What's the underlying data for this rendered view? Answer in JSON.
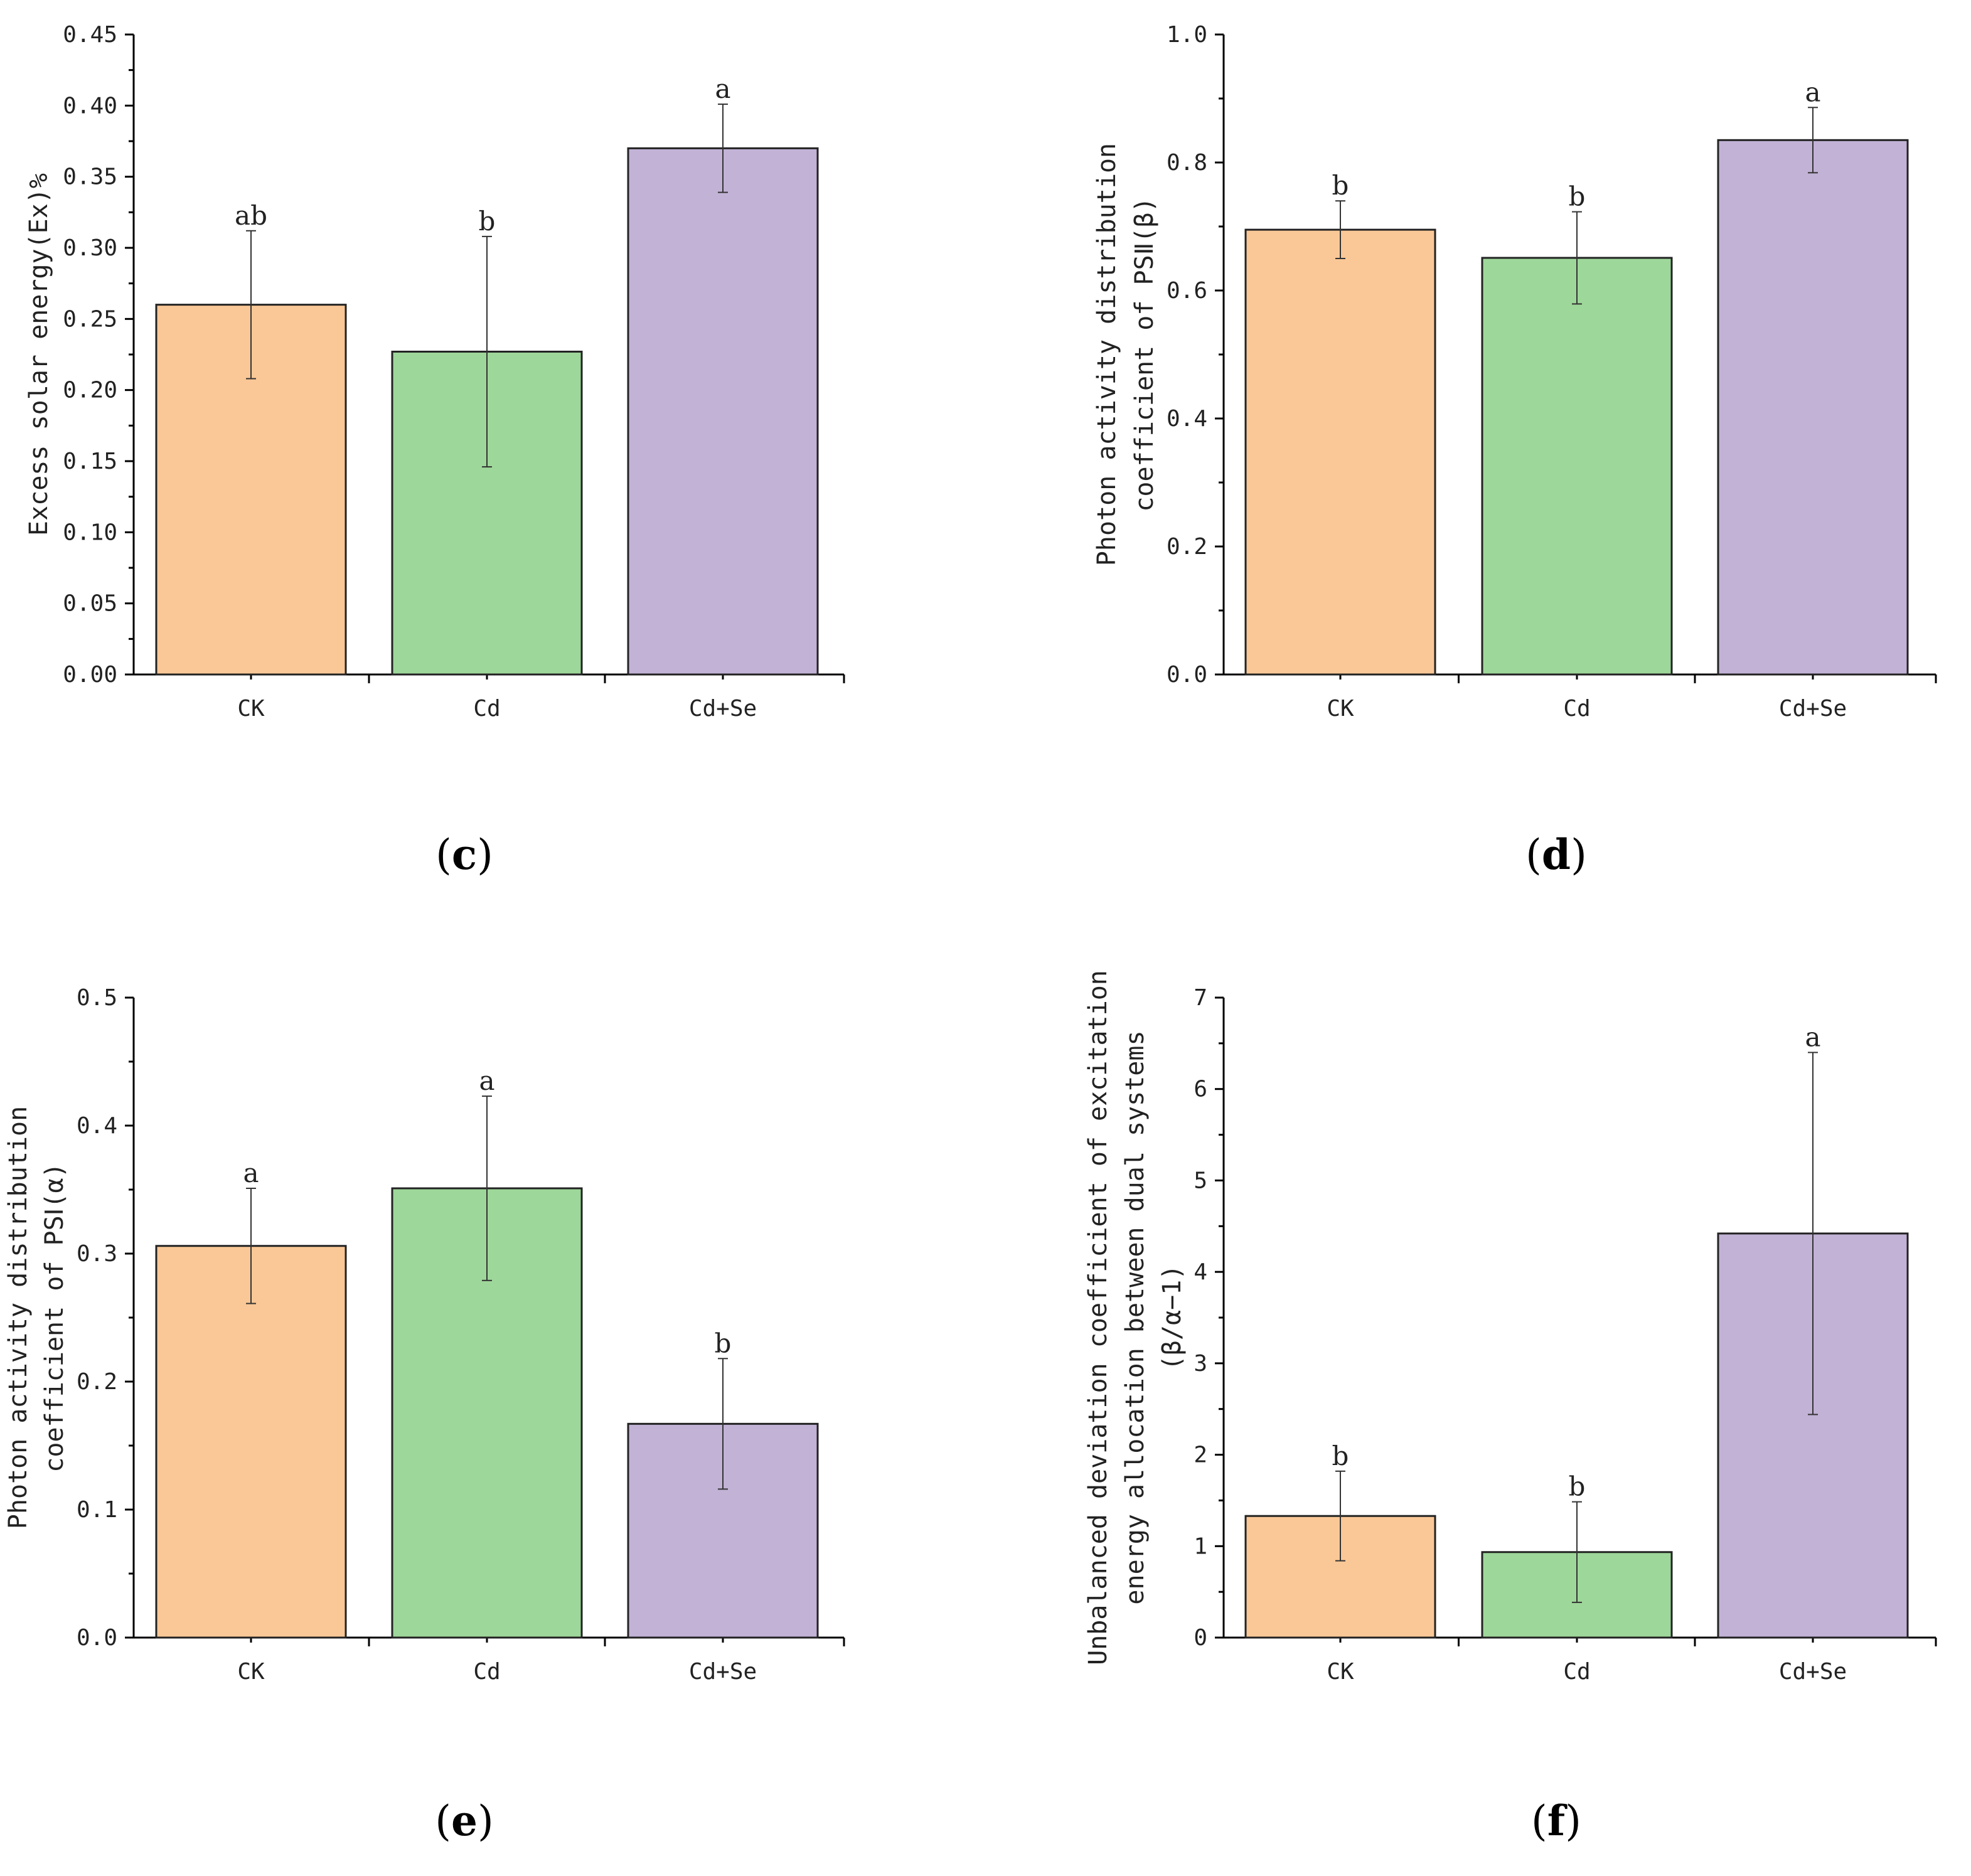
{
  "chart_data": [
    {
      "panel": "(c)",
      "panel_letter": "c",
      "type": "bar",
      "categories": [
        "CK",
        "Cd",
        "Cd+Se"
      ],
      "values": [
        0.26,
        0.227,
        0.37
      ],
      "errors": [
        0.052,
        0.081,
        0.031
      ],
      "significance": [
        "ab",
        "b",
        "a"
      ],
      "ylabel": "Excess solar energy(Ex)%",
      "ylim": [
        0,
        0.45
      ],
      "yticks": [
        "0.00",
        "0.05",
        "0.10",
        "0.15",
        "0.20",
        "0.25",
        "0.30",
        "0.35",
        "0.40",
        "0.45"
      ],
      "minor_ticks": true
    },
    {
      "panel": "(d)",
      "panel_letter": "d",
      "type": "bar",
      "categories": [
        "CK",
        "Cd",
        "Cd+Se"
      ],
      "values": [
        0.695,
        0.651,
        0.835
      ],
      "errors": [
        0.045,
        0.072,
        0.051
      ],
      "significance": [
        "b",
        "b",
        "a"
      ],
      "ylabel_lines": [
        "Photon activity distribution",
        "coefficient of PSⅡ(β)"
      ],
      "ylim": [
        0,
        1.0
      ],
      "yticks": [
        "0.0",
        "0.2",
        "0.4",
        "0.6",
        "0.8",
        "1.0"
      ],
      "minor_ticks": true
    },
    {
      "panel": "(e)",
      "panel_letter": "e",
      "type": "bar",
      "categories": [
        "CK",
        "Cd",
        "Cd+Se"
      ],
      "values": [
        0.306,
        0.351,
        0.167
      ],
      "errors": [
        0.045,
        0.072,
        0.051
      ],
      "significance": [
        "a",
        "a",
        "b"
      ],
      "ylabel_lines": [
        "Photon activity distribution",
        "coefficient of PSⅠ(α)"
      ],
      "ylim": [
        0,
        0.5
      ],
      "yticks": [
        "0.0",
        "0.1",
        "0.2",
        "0.3",
        "0.4",
        "0.5"
      ],
      "minor_ticks": false
    },
    {
      "panel": "(f)",
      "panel_letter": "f",
      "type": "bar",
      "categories": [
        "CK",
        "Cd",
        "Cd+Se"
      ],
      "values": [
        1.33,
        0.935,
        4.42
      ],
      "errors": [
        0.49,
        0.55,
        1.98
      ],
      "significance": [
        "b",
        "b",
        "a"
      ],
      "ylabel_lines": [
        "Unbalanced deviation coefficient of excitation",
        "energy allocation between dual systems",
        "(β/α−1)"
      ],
      "ylim": [
        0,
        7
      ],
      "yticks": [
        "0",
        "1",
        "2",
        "3",
        "4",
        "5",
        "6",
        "7"
      ],
      "minor_ticks": false
    }
  ],
  "colors": {
    "CK": "#fac896",
    "Cd": "#9ed79a",
    "Cd+Se": "#c2b2d6"
  }
}
